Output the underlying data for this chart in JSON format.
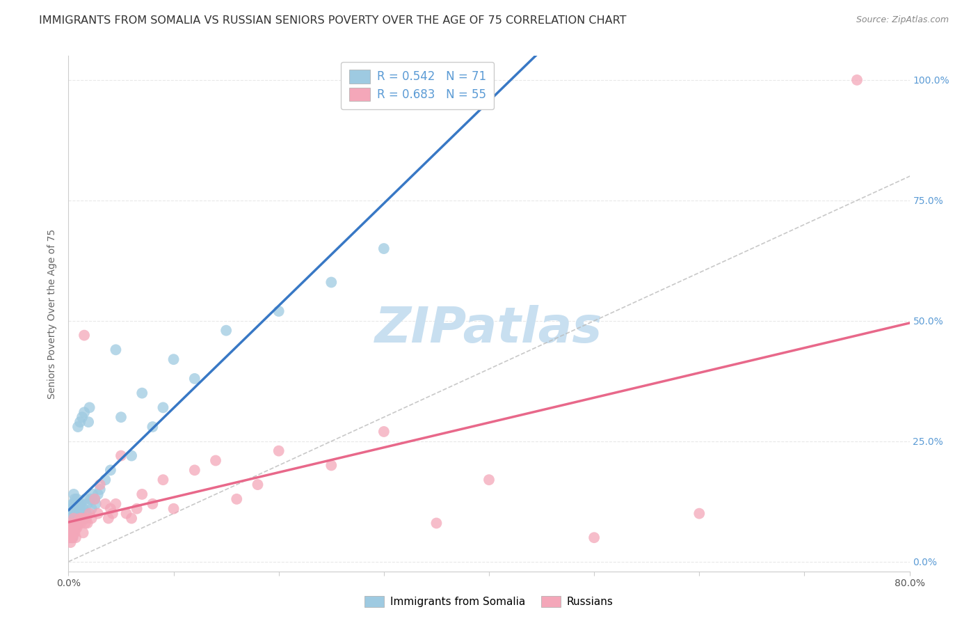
{
  "title": "IMMIGRANTS FROM SOMALIA VS RUSSIAN SENIORS POVERTY OVER THE AGE OF 75 CORRELATION CHART",
  "source": "Source: ZipAtlas.com",
  "ylabel": "Seniors Poverty Over the Age of 75",
  "ytick_labels": [
    "0.0%",
    "25.0%",
    "50.0%",
    "75.0%",
    "100.0%"
  ],
  "ytick_values": [
    0.0,
    0.25,
    0.5,
    0.75,
    1.0
  ],
  "xlim": [
    0.0,
    0.8
  ],
  "ylim": [
    -0.02,
    1.05
  ],
  "legend_r_somalia": "0.542",
  "legend_n_somalia": "71",
  "legend_r_russian": "0.683",
  "legend_n_russian": "55",
  "color_somalia": "#9ECAE1",
  "color_russian": "#F4A7B9",
  "color_somalia_line": "#3878C5",
  "color_russian_line": "#E8688A",
  "color_diagonal": "#BBBBBB",
  "watermark": "ZIPatlas",
  "watermark_color": "#C8DFF0",
  "somalia_x": [
    0.001,
    0.001,
    0.001,
    0.002,
    0.002,
    0.002,
    0.002,
    0.003,
    0.003,
    0.003,
    0.003,
    0.003,
    0.004,
    0.004,
    0.004,
    0.004,
    0.004,
    0.005,
    0.005,
    0.005,
    0.005,
    0.005,
    0.006,
    0.006,
    0.006,
    0.006,
    0.007,
    0.007,
    0.007,
    0.008,
    0.008,
    0.008,
    0.009,
    0.009,
    0.009,
    0.01,
    0.01,
    0.011,
    0.011,
    0.012,
    0.012,
    0.013,
    0.014,
    0.015,
    0.015,
    0.016,
    0.017,
    0.018,
    0.019,
    0.02,
    0.021,
    0.022,
    0.023,
    0.025,
    0.026,
    0.028,
    0.03,
    0.035,
    0.04,
    0.045,
    0.05,
    0.06,
    0.07,
    0.08,
    0.09,
    0.1,
    0.12,
    0.15,
    0.2,
    0.25,
    0.3
  ],
  "somalia_y": [
    0.05,
    0.06,
    0.08,
    0.05,
    0.07,
    0.09,
    0.1,
    0.05,
    0.07,
    0.08,
    0.09,
    0.11,
    0.05,
    0.06,
    0.08,
    0.1,
    0.12,
    0.06,
    0.08,
    0.1,
    0.12,
    0.14,
    0.07,
    0.09,
    0.11,
    0.13,
    0.08,
    0.1,
    0.12,
    0.09,
    0.11,
    0.13,
    0.08,
    0.1,
    0.28,
    0.1,
    0.12,
    0.11,
    0.29,
    0.1,
    0.12,
    0.3,
    0.11,
    0.09,
    0.31,
    0.13,
    0.1,
    0.12,
    0.29,
    0.32,
    0.13,
    0.11,
    0.14,
    0.13,
    0.12,
    0.14,
    0.15,
    0.17,
    0.19,
    0.44,
    0.3,
    0.22,
    0.35,
    0.28,
    0.32,
    0.42,
    0.38,
    0.48,
    0.52,
    0.58,
    0.65
  ],
  "russian_x": [
    0.001,
    0.001,
    0.002,
    0.002,
    0.003,
    0.003,
    0.004,
    0.004,
    0.005,
    0.005,
    0.006,
    0.006,
    0.007,
    0.007,
    0.008,
    0.009,
    0.01,
    0.011,
    0.012,
    0.013,
    0.014,
    0.015,
    0.016,
    0.017,
    0.018,
    0.02,
    0.022,
    0.025,
    0.028,
    0.03,
    0.035,
    0.038,
    0.04,
    0.042,
    0.045,
    0.05,
    0.055,
    0.06,
    0.065,
    0.07,
    0.08,
    0.09,
    0.1,
    0.12,
    0.14,
    0.16,
    0.18,
    0.2,
    0.25,
    0.3,
    0.35,
    0.4,
    0.5,
    0.6,
    0.75
  ],
  "russian_y": [
    0.05,
    0.07,
    0.04,
    0.06,
    0.05,
    0.08,
    0.05,
    0.07,
    0.06,
    0.09,
    0.06,
    0.08,
    0.05,
    0.07,
    0.07,
    0.08,
    0.08,
    0.09,
    0.08,
    0.09,
    0.06,
    0.47,
    0.08,
    0.09,
    0.08,
    0.1,
    0.09,
    0.13,
    0.1,
    0.16,
    0.12,
    0.09,
    0.11,
    0.1,
    0.12,
    0.22,
    0.1,
    0.09,
    0.11,
    0.14,
    0.12,
    0.17,
    0.11,
    0.19,
    0.21,
    0.13,
    0.16,
    0.23,
    0.2,
    0.27,
    0.08,
    0.17,
    0.05,
    0.1,
    1.0
  ],
  "background_color": "#ffffff",
  "grid_color": "#E8E8E8",
  "title_color": "#333333",
  "axis_label_color": "#666666",
  "right_ytick_color": "#5B9BD5",
  "title_fontsize": 11.5,
  "source_fontsize": 9,
  "legend_fontsize": 12,
  "watermark_fontsize": 52,
  "legend_text_color": "#333333",
  "legend_value_color": "#5B9BD5"
}
